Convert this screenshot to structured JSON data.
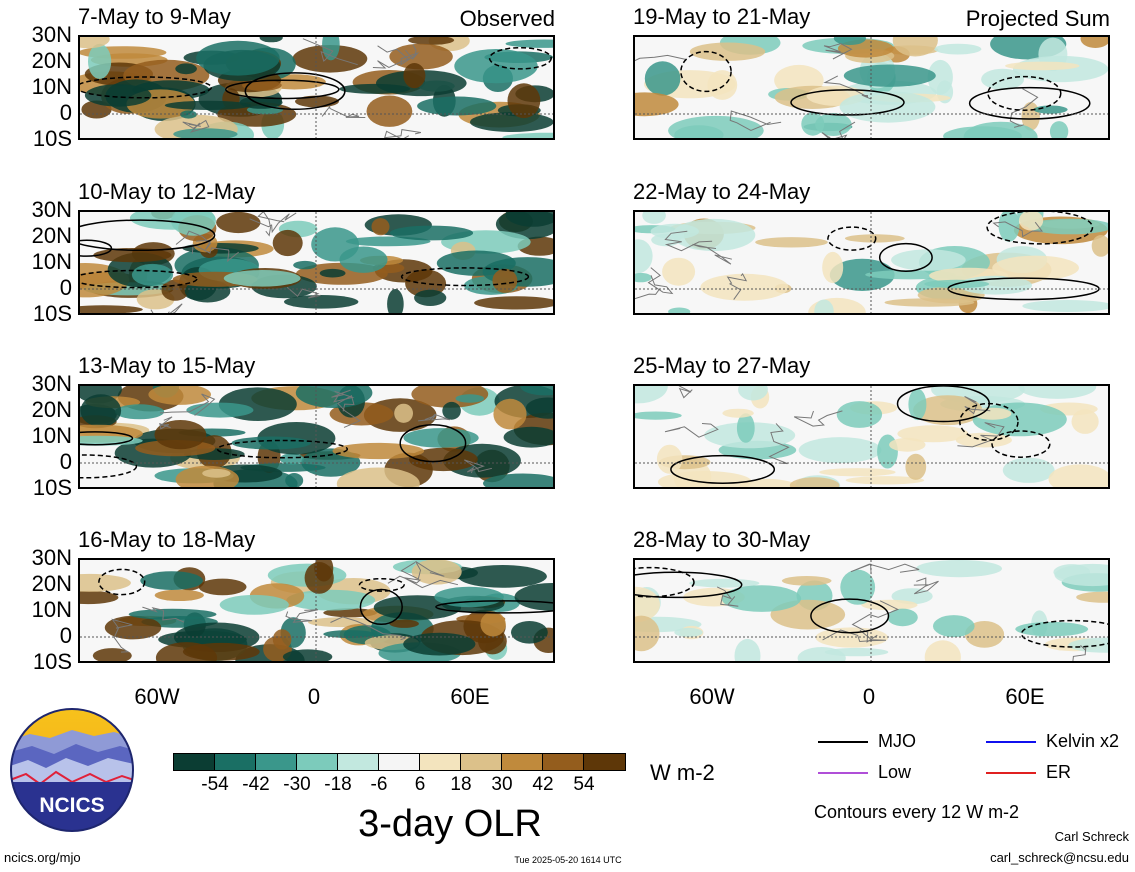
{
  "observed_label": "Observed",
  "projected_label": "Projected Sum",
  "lat_labels": [
    "30N",
    "20N",
    "10N",
    "0",
    "10S"
  ],
  "lon_labels": [
    "60W",
    "0",
    "60E"
  ],
  "panels": [
    {
      "title": "7-May to 9-May",
      "seed": 11,
      "intensity": 1.0
    },
    {
      "title": "10-May to 12-May",
      "seed": 23,
      "intensity": 1.0
    },
    {
      "title": "13-May to 15-May",
      "seed": 37,
      "intensity": 1.0
    },
    {
      "title": "16-May to 18-May",
      "seed": 41,
      "intensity": 1.0
    },
    {
      "title": "19-May to 21-May",
      "seed": 53,
      "intensity": 0.55
    },
    {
      "title": "22-May to 24-May",
      "seed": 67,
      "intensity": 0.5
    },
    {
      "title": "25-May to 27-May",
      "seed": 71,
      "intensity": 0.4
    },
    {
      "title": "28-May to 30-May",
      "seed": 83,
      "intensity": 0.3
    }
  ],
  "colorbar": {
    "colors": [
      "#0b3d33",
      "#1a6f64",
      "#3a978b",
      "#7ccbbb",
      "#c2e8df",
      "#f5f5f5",
      "#f3e4be",
      "#dcc18a",
      "#c08a3c",
      "#945d1d",
      "#5e3708"
    ],
    "ticks": [
      "-54",
      "-42",
      "-30",
      "-18",
      "-6",
      "6",
      "18",
      "30",
      "42",
      "54"
    ],
    "units": "W m-2",
    "title": "3-day OLR"
  },
  "legend": {
    "items": [
      {
        "label": "MJO",
        "color": "#000000"
      },
      {
        "label": "Kelvin x2",
        "color": "#1010ee"
      },
      {
        "label": "Low",
        "color": "#b04fd8"
      },
      {
        "label": "ER",
        "color": "#e02020"
      }
    ],
    "contours_note": "Contours every 12 W m-2"
  },
  "logo_text": "NCICS",
  "footer": {
    "url": "ncics.org/mjo",
    "timestamp": "Tue 2025-05-20 1614 UTC",
    "author": "Carl Schreck",
    "email": "carl_schreck@ncsu.edu"
  }
}
